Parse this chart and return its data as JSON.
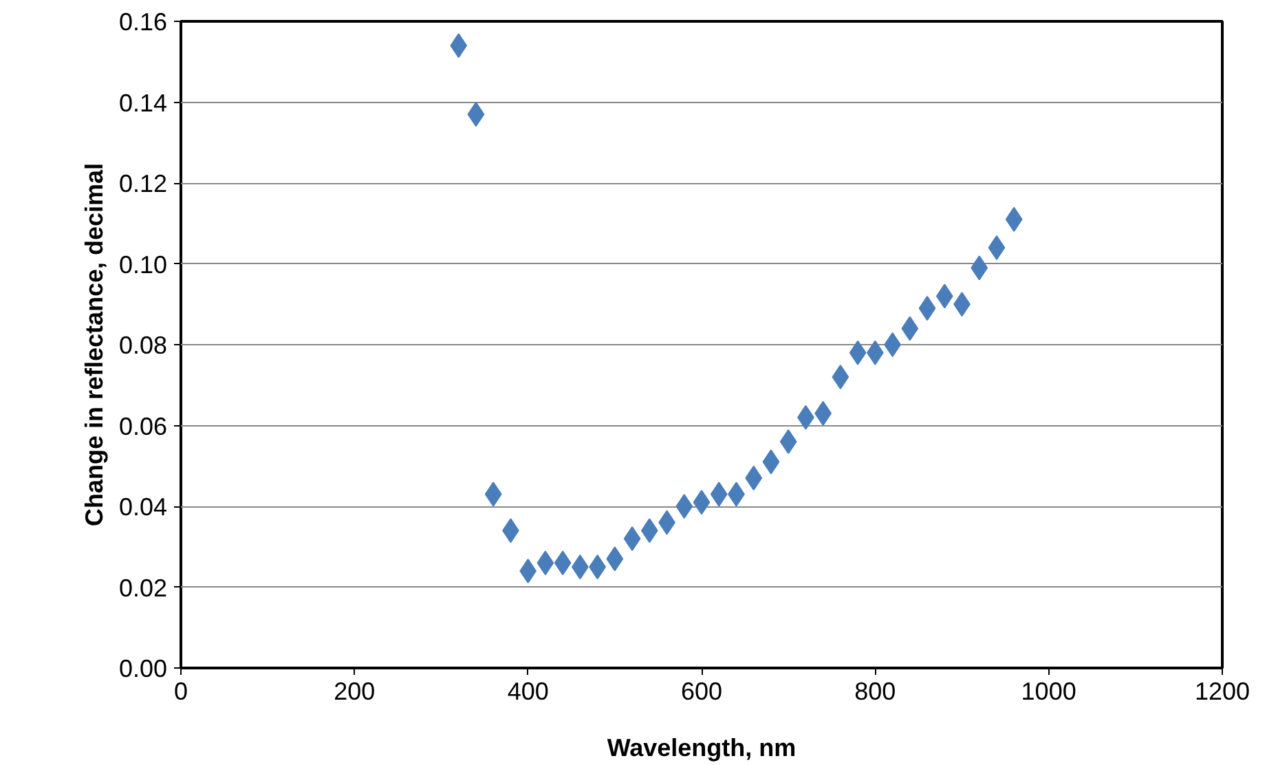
{
  "chart_data": {
    "type": "scatter",
    "xlabel": "Wavelength, nm",
    "ylabel": "Change in reflectance, decimal",
    "x": [
      320,
      340,
      360,
      380,
      400,
      420,
      440,
      460,
      480,
      500,
      520,
      540,
      560,
      580,
      600,
      620,
      640,
      660,
      680,
      700,
      720,
      740,
      760,
      780,
      800,
      820,
      840,
      860,
      880,
      900,
      920,
      940,
      960
    ],
    "series": [
      {
        "color": "#4a7ebb",
        "values": [
          0.154,
          0.137,
          0.043,
          0.034,
          0.024,
          0.026,
          0.026,
          0.025,
          0.025,
          0.027,
          0.032,
          0.034,
          0.036,
          0.04,
          0.041,
          0.043,
          0.043,
          0.047,
          0.051,
          0.056,
          0.062,
          0.063,
          0.072,
          0.078,
          0.078,
          0.08,
          0.084,
          0.089,
          0.092,
          0.09,
          0.099,
          0.104,
          0.111
        ]
      }
    ],
    "xlim": [
      0,
      1200
    ],
    "xticks": [
      0,
      200,
      400,
      600,
      800,
      1000,
      1200
    ],
    "ylim": [
      0,
      0.16
    ],
    "yticks": [
      {
        "value": 0,
        "label": "0.00"
      },
      {
        "value": 0.02,
        "label": "0.02"
      },
      {
        "value": 0.04,
        "label": "0.04"
      },
      {
        "value": 0.06,
        "label": "0.06"
      },
      {
        "value": 0.08,
        "label": "0.08"
      },
      {
        "value": 0.1,
        "label": "0.10"
      },
      {
        "value": 0.12,
        "label": "0.12"
      },
      {
        "value": 0.14,
        "label": "0.14"
      },
      {
        "value": 0.16,
        "label": "0.16"
      }
    ],
    "grid": "y",
    "marker": "diamond"
  }
}
